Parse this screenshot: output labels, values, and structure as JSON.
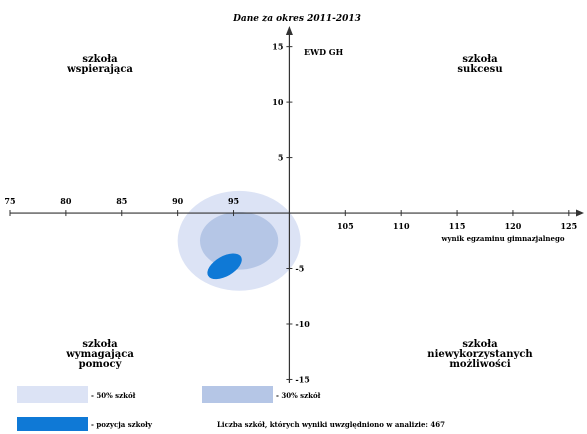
{
  "chart_data": {
    "type": "scatter",
    "title": "Dane za okres 2011-2013",
    "xlabel": "wynik egzaminu gimnazjalnego",
    "ylabel": "EWD GH",
    "xlim": [
      75,
      126
    ],
    "ylim": [
      -15.5,
      16.5
    ],
    "x_axis_crosses_y_at": 0,
    "y_axis_crosses_x_at": 100,
    "x_ticks": [
      75,
      80,
      85,
      90,
      95,
      105,
      110,
      115,
      120,
      125
    ],
    "y_ticks": [
      15,
      10,
      5,
      -5,
      -10,
      -15
    ],
    "grid": false,
    "quadrants": {
      "top_left": "szkoła wspierająca",
      "top_right": "szkoła sukcesu",
      "bottom_left": "szkoła wymagająca pomocy",
      "bottom_right": "szkoła niewykorzystanych możliwości"
    },
    "regions": [
      {
        "name": "50% szkół",
        "color": "#dce3f5",
        "center": [
          95.5,
          -2.5
        ],
        "rx": 5.5,
        "ry": 4.5
      },
      {
        "name": "30% szkół",
        "color": "#b5c6e6",
        "center": [
          95.5,
          -2.5
        ],
        "rx": 3.5,
        "ry": 2.6
      }
    ],
    "school_position": {
      "name": "pozycja szkoły",
      "color": "#0f79d6",
      "x": 94.2,
      "y": -4.8,
      "rx": 1.7,
      "ry": 0.9,
      "rotation": -30
    },
    "legend": [
      {
        "label": "- 50% szkół",
        "color": "#dce3f5"
      },
      {
        "label": "- 30% szkół",
        "color": "#b5c6e6"
      },
      {
        "label": "- pozycja szkoły",
        "color": "#0f79d6"
      }
    ],
    "note": "Liczba szkół, których wyniki uwzględniono w analizie: 467"
  }
}
